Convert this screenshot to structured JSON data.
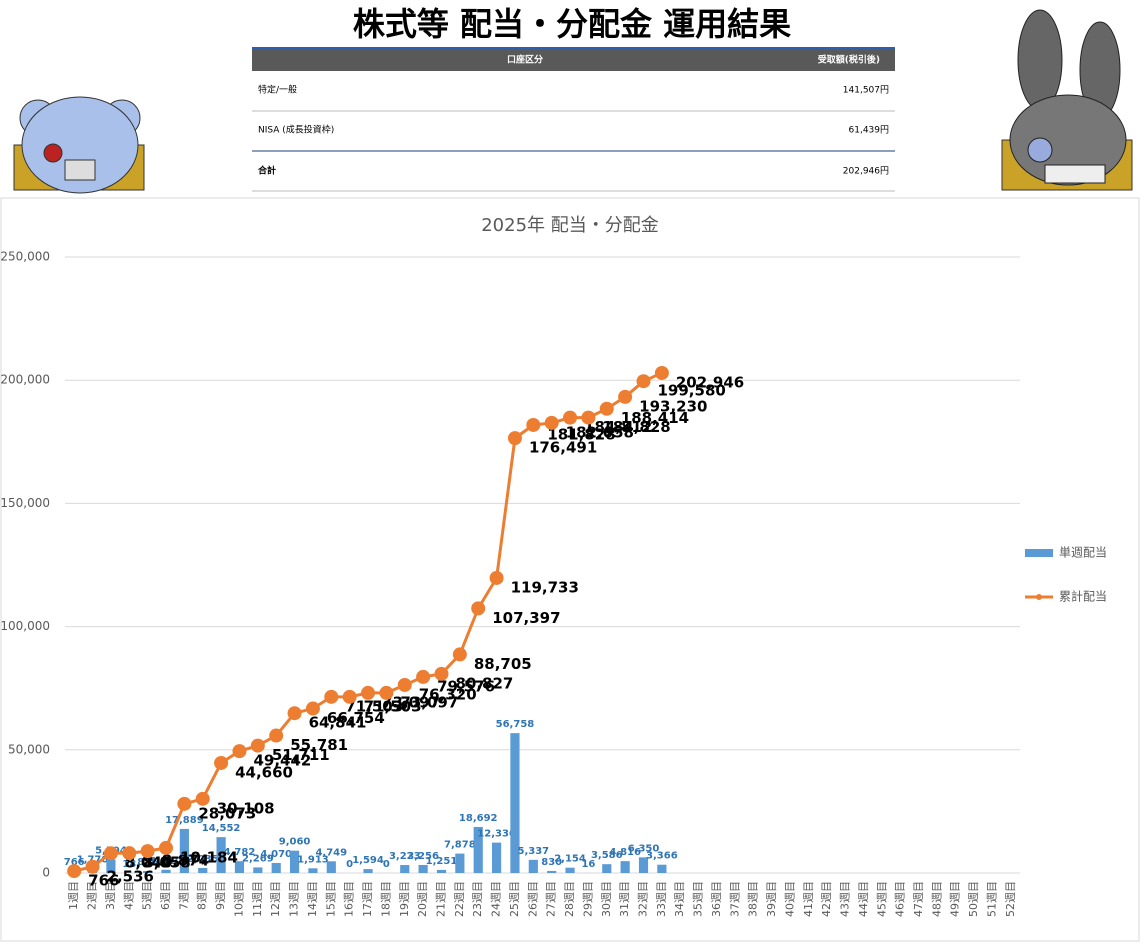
{
  "header": {
    "title": "株式等 配当・分配金 運用結果"
  },
  "table": {
    "headers": [
      "口座区分",
      "受取額(税引後)"
    ],
    "rows": [
      [
        "特定/一般",
        "141,507円"
      ],
      [
        "NISA (成長投資枠)",
        "61,439円"
      ],
      [
        "合計",
        "202,946円"
      ]
    ]
  },
  "chart_data": {
    "type": "bar",
    "title": "2025年 配当・分配金",
    "categories": [
      "1週目",
      "2週目",
      "3週目",
      "4週目",
      "5週目",
      "6週目",
      "7週目",
      "8週目",
      "9週目",
      "10週目",
      "11週目",
      "12週目",
      "13週目",
      "14週目",
      "15週目",
      "16週目",
      "17週目",
      "18週目",
      "19週目",
      "20週目",
      "21週目",
      "22週目",
      "23週目",
      "24週目",
      "25週目",
      "26週目",
      "27週目",
      "28週目",
      "29週目",
      "30週目",
      "31週目",
      "32週目",
      "33週目",
      "34週目",
      "35週目",
      "36週目",
      "37週目",
      "38週目",
      "39週目",
      "40週目",
      "41週目",
      "42週目",
      "43週目",
      "44週目",
      "45週目",
      "46週目",
      "47週目",
      "48週目",
      "49週目",
      "50週目",
      "51週目",
      "52週目"
    ],
    "series": [
      {
        "name": "単週配当",
        "type": "bar",
        "color": "#5b9bd5",
        "values": [
          766,
          1770,
          5504,
          18,
          816,
          1310,
          17889,
          2035,
          14552,
          4782,
          2269,
          4070,
          9060,
          1913,
          4749,
          0,
          1594,
          0,
          3223,
          3256,
          1251,
          7878,
          18692,
          12336,
          56758,
          5337,
          830,
          2154,
          16,
          3586,
          4816,
          6350,
          3366,
          null,
          null,
          null,
          null,
          null,
          null,
          null,
          null,
          null,
          null,
          null,
          null,
          null,
          null,
          null,
          null,
          null,
          null,
          null
        ],
        "value_labels": [
          "766",
          "1,770",
          "5,504",
          "18",
          "816",
          "1,310",
          "17,889",
          "2,035",
          "14,552",
          "4,782",
          "2,269",
          "4,070",
          "9,060",
          "1,913",
          "4,749",
          "0",
          "1,594",
          "0",
          "3,223",
          "3,256",
          "1,251",
          "7,878",
          "18,692",
          "12,336",
          "56,758",
          "5,337",
          "830",
          "2,154",
          "16",
          "3,586",
          "4,816",
          "6,350",
          "3,366",
          null,
          null,
          null,
          null,
          null,
          null,
          null,
          null,
          null,
          null,
          null,
          null,
          null,
          null,
          null,
          null,
          null,
          null,
          null
        ]
      },
      {
        "name": "累計配当",
        "type": "line",
        "color": "#ed7d31",
        "values": [
          766,
          2536,
          8040,
          8058,
          8874,
          10184,
          28073,
          30108,
          44660,
          49442,
          51711,
          55781,
          64841,
          66754,
          71503,
          71503,
          73097,
          73097,
          76320,
          79576,
          80827,
          88705,
          107397,
          119733,
          176491,
          181828,
          182658,
          184812,
          184828,
          188414,
          193230,
          199580,
          202946,
          null,
          null,
          null,
          null,
          null,
          null,
          null,
          null,
          null,
          null,
          null,
          null,
          null,
          null,
          null,
          null,
          null,
          null,
          null
        ],
        "value_labels": [
          "766",
          "2,536",
          "8,040",
          "8,058",
          "8,874",
          "10,184",
          "28,073",
          "30,108",
          "44,660",
          "49,442",
          "51,711",
          "55,781",
          "64,841",
          "66,754",
          "71,503",
          "71,503",
          "73,097",
          "73,097",
          "76,320",
          "79,576",
          "80,827",
          "88,705",
          "107,397",
          "119,733",
          "176,491",
          "181,828",
          "182,658",
          "184,812",
          "184,828",
          "188,414",
          "193,230",
          "199,580",
          "202,946",
          null,
          null,
          null,
          null,
          null,
          null,
          null,
          null,
          null,
          null,
          null,
          null,
          null,
          null,
          null,
          null,
          null,
          null,
          null
        ]
      }
    ],
    "ylim": [
      0,
      250000
    ],
    "yticks": [
      0,
      {
        "value": 50000,
        "label": "50,000"
      },
      {
        "value": 100000,
        "label": "100,000"
      },
      {
        "value": 150000,
        "label": "150,000"
      },
      {
        "value": 200000,
        "label": "200,000"
      },
      {
        "value": 250000,
        "label": "250,000"
      }
    ],
    "grid": true,
    "legend": "right"
  }
}
